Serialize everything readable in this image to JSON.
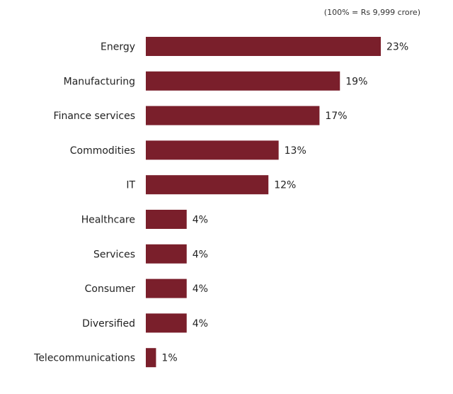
{
  "chart_data": {
    "type": "bar",
    "orientation": "horizontal",
    "note": "(100% = Rs 9,999 crore)",
    "categories": [
      "Energy",
      "Manufacturing",
      "Finance services",
      "Commodities",
      "IT",
      "Healthcare",
      "Services",
      "Consumer",
      "Diversified",
      "Telecommunications"
    ],
    "values": [
      23,
      19,
      17,
      13,
      12,
      4,
      4,
      4,
      4,
      1
    ],
    "value_labels": [
      "23%",
      "19%",
      "17%",
      "13%",
      "12%",
      "4%",
      "4%",
      "4%",
      "4%",
      "1%"
    ],
    "bar_color": "#7a1f2b",
    "grid": false,
    "legend": "none"
  }
}
